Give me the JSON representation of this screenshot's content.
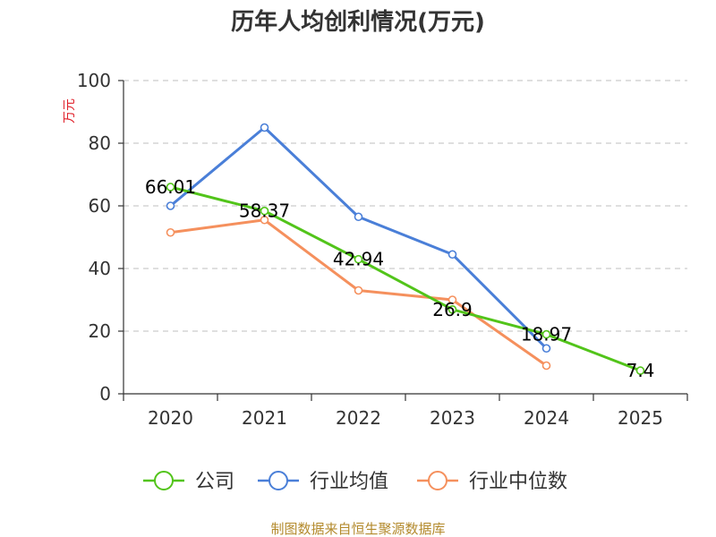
{
  "chart_data": {
    "type": "line",
    "title": "历年人均创利情况(万元)",
    "ylabel": "万元",
    "xlabel": "",
    "ylim": [
      0,
      100
    ],
    "yticks": [
      0,
      20,
      40,
      60,
      80,
      100
    ],
    "categories": [
      "2020",
      "2021",
      "2022",
      "2023",
      "2024",
      "2025"
    ],
    "grid": true,
    "legend_position": "bottom",
    "series": [
      {
        "name": "公司",
        "color": "#52c41a",
        "values": [
          66.01,
          58.37,
          42.94,
          26.9,
          18.97,
          7.4
        ],
        "labels": [
          "66.01",
          "58.37",
          "42.94",
          "26.9",
          "18.97",
          "7.4"
        ]
      },
      {
        "name": "行业均值",
        "color": "#4a7fd8",
        "values": [
          60,
          85,
          56.5,
          44.5,
          14.5,
          null
        ]
      },
      {
        "name": "行业中位数",
        "color": "#f5905d",
        "values": [
          51.5,
          55.5,
          33,
          30,
          9,
          null
        ]
      }
    ]
  },
  "source_text": "制图数据来自恒生聚源数据库"
}
